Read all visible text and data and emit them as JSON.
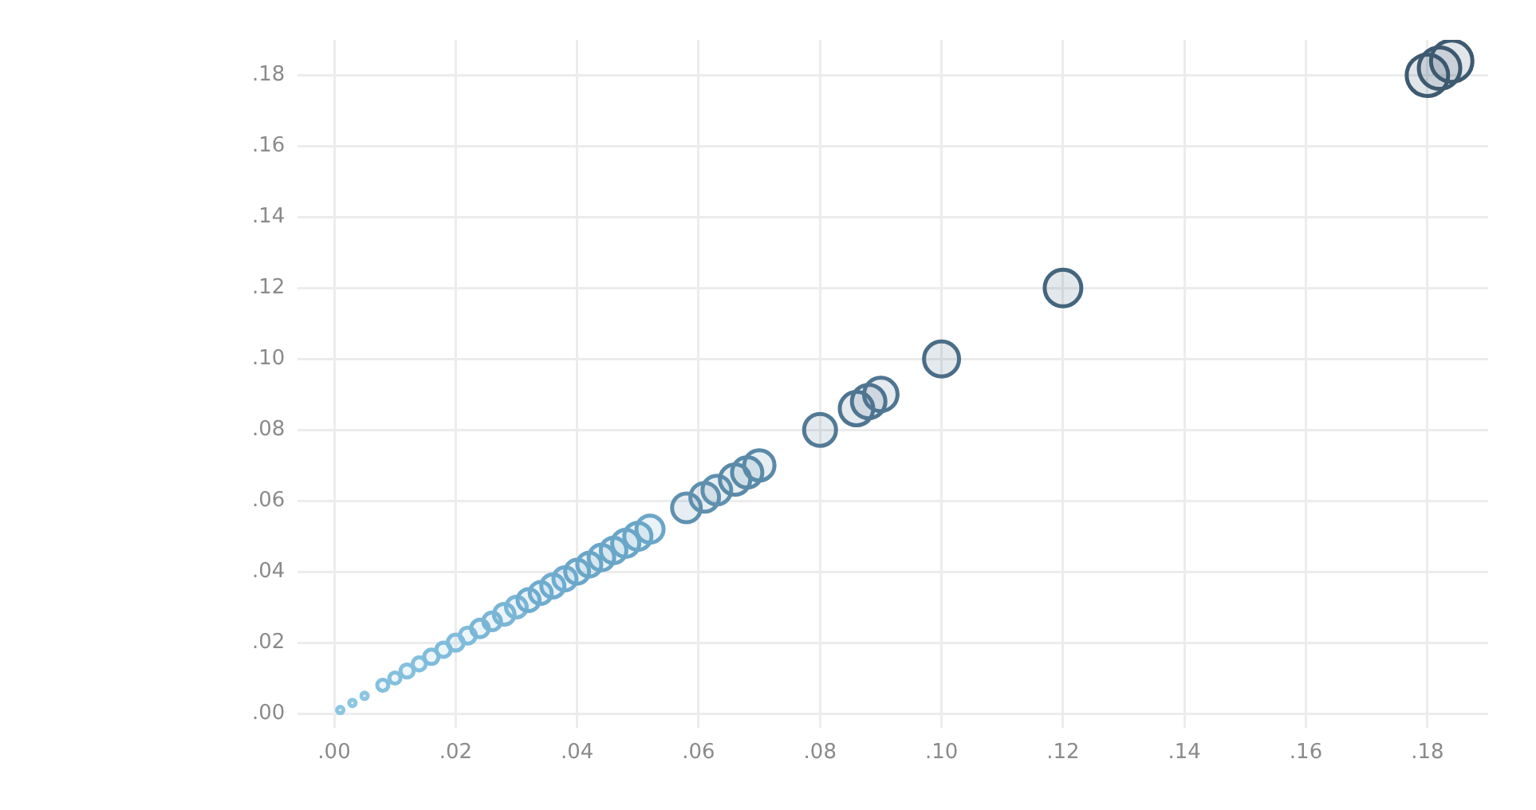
{
  "chart_data": {
    "type": "bubble",
    "x": [
      0.001,
      0.003,
      0.005,
      0.008,
      0.01,
      0.012,
      0.014,
      0.016,
      0.018,
      0.02,
      0.022,
      0.024,
      0.026,
      0.028,
      0.03,
      0.032,
      0.034,
      0.036,
      0.038,
      0.04,
      0.042,
      0.044,
      0.046,
      0.048,
      0.05,
      0.052,
      0.058,
      0.061,
      0.063,
      0.066,
      0.068,
      0.07,
      0.08,
      0.086,
      0.088,
      0.09,
      0.1,
      0.12,
      0.18,
      0.182,
      0.184
    ],
    "values": [
      0.001,
      0.003,
      0.005,
      0.008,
      0.01,
      0.012,
      0.014,
      0.016,
      0.018,
      0.02,
      0.022,
      0.024,
      0.026,
      0.028,
      0.03,
      0.032,
      0.034,
      0.036,
      0.038,
      0.04,
      0.042,
      0.044,
      0.046,
      0.048,
      0.05,
      0.052,
      0.058,
      0.061,
      0.063,
      0.066,
      0.068,
      0.07,
      0.08,
      0.086,
      0.088,
      0.09,
      0.1,
      0.12,
      0.18,
      0.182,
      0.184
    ],
    "sizes": [
      0.024,
      0.024,
      0.024,
      0.072,
      0.072,
      0.1,
      0.1,
      0.12,
      0.12,
      0.148,
      0.148,
      0.18,
      0.18,
      0.25,
      0.25,
      0.28,
      0.28,
      0.31,
      0.31,
      0.333,
      0.333,
      0.38,
      0.38,
      0.428,
      0.428,
      0.428,
      0.479,
      0.479,
      0.479,
      0.534,
      0.534,
      0.534,
      0.592,
      0.652,
      0.652,
      0.652,
      0.716,
      0.783,
      1,
      1,
      1
    ],
    "colors": [
      "#8cc6e2",
      "#8cc6e2",
      "#8cc6e2",
      "#84c0de",
      "#84c0de",
      "#84c0de",
      "#84c0de",
      "#7fbcdc",
      "#7fbcdc",
      "#7fbcdc",
      "#7fbcdc",
      "#7ab6d6",
      "#7ab6d6",
      "#7ab6d6",
      "#7ab6d6",
      "#6faccf",
      "#6faccf",
      "#6faccf",
      "#6faccf",
      "#6aa6c8",
      "#6aa6c8",
      "#6aa6c8",
      "#6aa6c8",
      "#6aa6c8",
      "#6aa6c8",
      "#6aa6c8",
      "#5f90ae",
      "#5f90ae",
      "#5f90ae",
      "#5a8aa8",
      "#5a8aa8",
      "#5a8aa8",
      "#527a96",
      "#4f7591",
      "#4f7591",
      "#4f7591",
      "#4a6d88",
      "#44657d",
      "#3d5a70",
      "#3d5a70",
      "#3d5a70"
    ],
    "xlim": [
      -0.006,
      0.19
    ],
    "ylim": [
      -0.004,
      0.19
    ],
    "xticks": [
      {
        "value": 0,
        "label": ".00"
      },
      {
        "value": 0.02,
        "label": ".02"
      },
      {
        "value": 0.04,
        "label": ".04"
      },
      {
        "value": 0.06,
        "label": ".06"
      },
      {
        "value": 0.08,
        "label": ".08"
      },
      {
        "value": 0.1,
        "label": ".10"
      },
      {
        "value": 0.12,
        "label": ".12"
      },
      {
        "value": 0.14,
        "label": ".14"
      },
      {
        "value": 0.16,
        "label": ".16"
      },
      {
        "value": 0.18,
        "label": ".18"
      }
    ],
    "yticks": [
      {
        "value": 0,
        "label": ".00"
      },
      {
        "value": 0.02,
        "label": ".02"
      },
      {
        "value": 0.04,
        "label": ".04"
      },
      {
        "value": 0.06,
        "label": ".06"
      },
      {
        "value": 0.08,
        "label": ".08"
      },
      {
        "value": 0.1,
        "label": ".10"
      },
      {
        "value": 0.12,
        "label": ".12"
      },
      {
        "value": 0.14,
        "label": ".14"
      },
      {
        "value": 0.16,
        "label": ".16"
      },
      {
        "value": 0.18,
        "label": ".18"
      }
    ],
    "grid": true
  }
}
